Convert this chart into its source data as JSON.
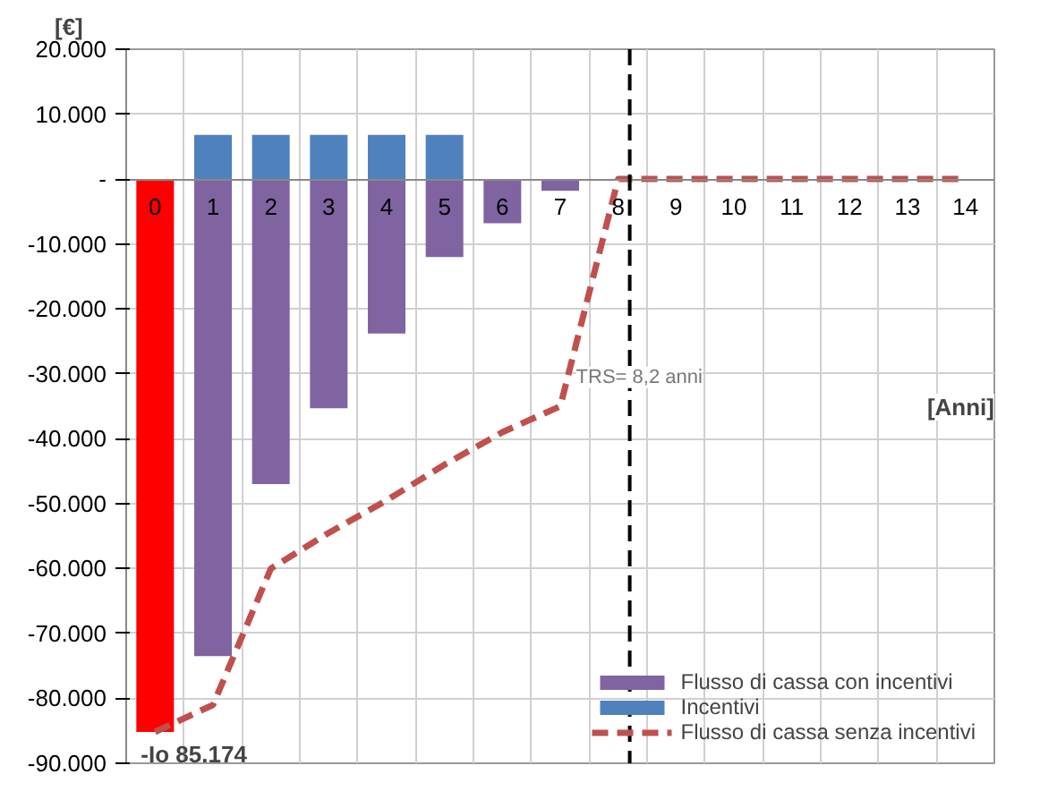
{
  "chart_data": {
    "type": "bar",
    "xlabel": "[Anni]",
    "ylabel": "[€]",
    "stacked": true,
    "x": [
      0,
      1,
      2,
      3,
      4,
      5,
      6,
      7,
      8,
      9,
      10,
      11,
      12,
      13,
      14
    ],
    "xlim": [
      -0.5,
      14.5
    ],
    "xticks": [
      0,
      1,
      2,
      3,
      4,
      5,
      6,
      7,
      8,
      9,
      10,
      11,
      12,
      13,
      14
    ],
    "series": [
      {
        "name": "Flusso di cassa con incentivi",
        "color": "#8064a2",
        "colors": [
          "#ff0000",
          "#8064a2",
          "#8064a2",
          "#8064a2",
          "#8064a2",
          "#8064a2",
          "#8064a2",
          "#8064a2",
          null,
          null,
          null,
          null,
          null,
          null,
          null
        ],
        "values": [
          -85174,
          -73500,
          -47000,
          -35300,
          -23800,
          -12000,
          -6800,
          -1800,
          null,
          null,
          null,
          null,
          null,
          null,
          null
        ]
      },
      {
        "name": "Incentivi",
        "color": "#4f81bd",
        "values": [
          null,
          6800,
          6800,
          6800,
          6800,
          6800,
          null,
          null,
          null,
          null,
          null,
          null,
          null,
          null,
          null
        ]
      },
      {
        "name": "Flusso di cassa senza incentivi",
        "type": "line",
        "color": "#c0504d",
        "line_style": "dashed",
        "marker": "none",
        "values": [
          -85174,
          -81000,
          -60000,
          -54500,
          -49500,
          -44000,
          -39000,
          -35000,
          0,
          0,
          0,
          0,
          0,
          0,
          0
        ]
      }
    ],
    "ylim": [
      -90000,
      20000
    ],
    "yticks": [
      {
        "value": -90000,
        "label": "-90.000"
      },
      {
        "value": -80000,
        "label": "-80.000"
      },
      {
        "value": -70000,
        "label": "-70.000"
      },
      {
        "value": -60000,
        "label": "-60.000"
      },
      {
        "value": -50000,
        "label": "-50.000"
      },
      {
        "value": -40000,
        "label": "-40.000"
      },
      {
        "value": -30000,
        "label": "-30.000"
      },
      {
        "value": -20000,
        "label": "-20.000"
      },
      {
        "value": -10000,
        "label": "-10.000"
      },
      {
        "value": 0,
        "label": "-"
      },
      {
        "value": 10000,
        "label": "10.000"
      },
      {
        "value": 20000,
        "label": "20.000"
      }
    ],
    "ref_lines": [
      {
        "axis": "x",
        "value": 8.2,
        "label": "TRS= 8,2 anni",
        "color": "#000000",
        "line_style": "dashed"
      }
    ],
    "annotations": [
      {
        "text": "-Io 85.174",
        "x": 0,
        "y": -85174
      }
    ],
    "grid": true,
    "legend": "bottom right"
  }
}
